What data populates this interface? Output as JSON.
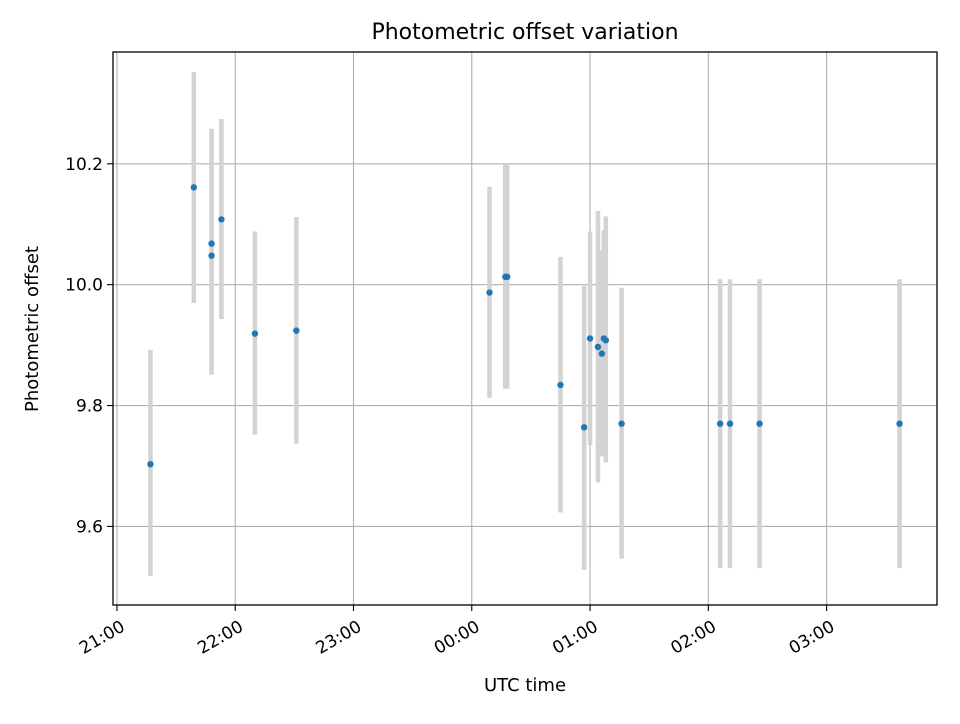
{
  "chart_data": {
    "type": "scatter",
    "title": "Photometric offset variation",
    "xlabel": "UTC time",
    "ylabel": "Photometric offset",
    "x_ticks": [
      "21:00",
      "22:00",
      "23:00",
      "00:00",
      "01:00",
      "02:00",
      "03:00"
    ],
    "y_ticks": [
      "9.6",
      "9.8",
      "10.0",
      "10.2"
    ],
    "x_tick_hours": [
      21,
      22,
      23,
      24,
      25,
      26,
      27
    ],
    "y_tick_values": [
      9.6,
      9.8,
      10.0,
      10.2
    ],
    "xlim": [
      "20:58",
      "03:56"
    ],
    "ylim": [
      9.47,
      10.385
    ],
    "grid": true,
    "colors": {
      "point": "#1f77b4",
      "errorbar": "#d3d3d3",
      "grid": "#b0b0b0"
    },
    "points": [
      {
        "x": "21:17",
        "y": 9.703,
        "ylow": 9.518,
        "yhigh": 9.892
      },
      {
        "x": "21:39",
        "y": 10.161,
        "ylow": 9.97,
        "yhigh": 10.352
      },
      {
        "x": "21:48",
        "y": 10.068,
        "ylow": 9.878,
        "yhigh": 10.258
      },
      {
        "x": "21:48",
        "y": 10.048,
        "ylow": 9.851,
        "yhigh": 10.245
      },
      {
        "x": "21:53",
        "y": 10.108,
        "ylow": 9.943,
        "yhigh": 10.274
      },
      {
        "x": "22:10",
        "y": 9.919,
        "ylow": 9.752,
        "yhigh": 10.088
      },
      {
        "x": "22:31",
        "y": 9.924,
        "ylow": 9.737,
        "yhigh": 10.112
      },
      {
        "x": "00:09",
        "y": 9.987,
        "ylow": 9.813,
        "yhigh": 10.162
      },
      {
        "x": "00:17",
        "y": 10.013,
        "ylow": 9.828,
        "yhigh": 10.2
      },
      {
        "x": "00:18",
        "y": 10.013,
        "ylow": 9.828,
        "yhigh": 10.2
      },
      {
        "x": "00:45",
        "y": 9.834,
        "ylow": 9.623,
        "yhigh": 10.046
      },
      {
        "x": "00:57",
        "y": 9.764,
        "ylow": 9.528,
        "yhigh": 9.998
      },
      {
        "x": "01:00",
        "y": 9.911,
        "ylow": 9.735,
        "yhigh": 10.088
      },
      {
        "x": "01:04",
        "y": 9.897,
        "ylow": 9.673,
        "yhigh": 10.122
      },
      {
        "x": "01:06",
        "y": 9.886,
        "ylow": 9.716,
        "yhigh": 10.057
      },
      {
        "x": "01:07",
        "y": 9.911,
        "ylow": 9.72,
        "yhigh": 10.09
      },
      {
        "x": "01:08",
        "y": 9.908,
        "ylow": 9.706,
        "yhigh": 10.113
      },
      {
        "x": "01:16",
        "y": 9.77,
        "ylow": 9.547,
        "yhigh": 9.995
      },
      {
        "x": "02:06",
        "y": 9.77,
        "ylow": 9.531,
        "yhigh": 10.009
      },
      {
        "x": "02:11",
        "y": 9.77,
        "ylow": 9.531,
        "yhigh": 10.009
      },
      {
        "x": "02:26",
        "y": 9.77,
        "ylow": 9.531,
        "yhigh": 10.009
      },
      {
        "x": "03:37",
        "y": 9.77,
        "ylow": 9.531,
        "yhigh": 10.009
      }
    ]
  }
}
